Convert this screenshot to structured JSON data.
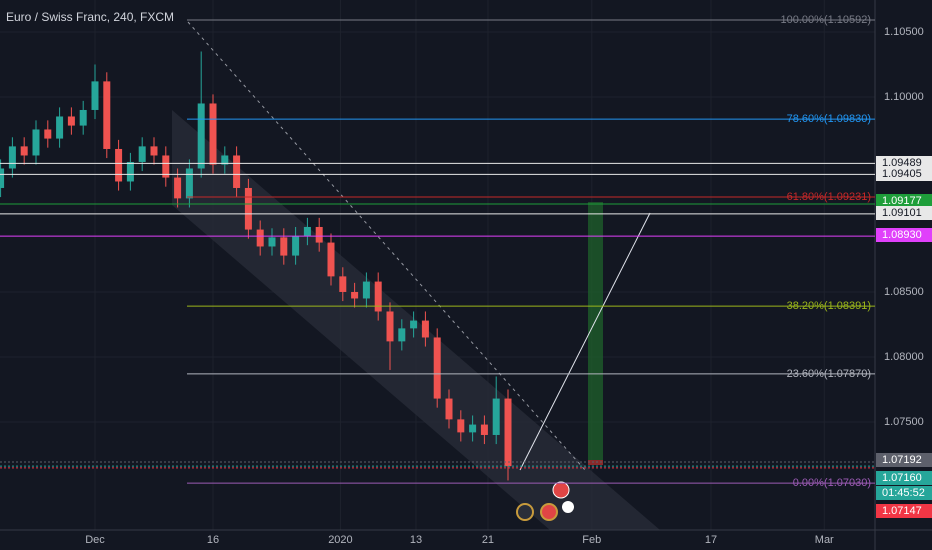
{
  "chart_data": {
    "type": "candlestick",
    "title": "Euro / Swiss Franc, 240, FXCM",
    "xlim": [
      -8.05,
      66.1
    ],
    "ylim": [
      1.06669,
      1.10746
    ],
    "xticks": [
      {
        "value": 0,
        "label": "Dec"
      },
      {
        "value": 10,
        "label": "16"
      },
      {
        "value": 20.8,
        "label": "2020"
      },
      {
        "value": 27.2,
        "label": "13"
      },
      {
        "value": 33.3,
        "label": "21"
      },
      {
        "value": 42.1,
        "label": "Feb"
      },
      {
        "value": 52.2,
        "label": "17"
      },
      {
        "value": 61.8,
        "label": "Mar"
      }
    ],
    "yticks": [
      {
        "value": 1.105,
        "label": "1.10500"
      },
      {
        "value": 1.1,
        "label": "1.10000"
      },
      {
        "value": 1.085,
        "label": "1.08500"
      },
      {
        "value": 1.08,
        "label": "1.08000"
      },
      {
        "value": 1.075,
        "label": "1.07500"
      }
    ],
    "grid": true,
    "candles": {
      "up_color": "#26a69a",
      "down_color": "#ef5350",
      "x": [
        -8,
        -7,
        -6,
        -5,
        -4,
        -3,
        -2,
        -1,
        0,
        1,
        2,
        3,
        4,
        5,
        6,
        7,
        8,
        9,
        10,
        11,
        12,
        13,
        14,
        15,
        16,
        17,
        18,
        19,
        20,
        21,
        22,
        23,
        24,
        25,
        26,
        27,
        28,
        29,
        30,
        31,
        32,
        33,
        34,
        35
      ],
      "open": [
        1.093,
        1.0945,
        1.0962,
        1.0955,
        1.0975,
        1.0968,
        1.0985,
        1.0978,
        1.099,
        1.1012,
        1.096,
        1.0935,
        1.095,
        1.0962,
        1.0955,
        1.0938,
        1.0922,
        1.0945,
        1.0995,
        1.0948,
        1.0955,
        1.093,
        1.0898,
        1.0885,
        1.0892,
        1.0878,
        1.0893,
        1.09,
        1.0888,
        1.0862,
        1.085,
        1.0845,
        1.0858,
        1.0835,
        1.0812,
        1.0822,
        1.0828,
        1.0815,
        1.0768,
        1.0752,
        1.0742,
        1.0748,
        1.074,
        1.0768
      ],
      "high": [
        1.0952,
        1.0969,
        1.0969,
        1.0982,
        1.0982,
        1.0992,
        1.0992,
        1.0997,
        1.1025,
        1.1019,
        1.0967,
        1.0957,
        1.0969,
        1.0969,
        1.0962,
        1.0945,
        1.0952,
        1.1035,
        1.1002,
        1.0962,
        1.0962,
        1.0937,
        1.0905,
        1.0899,
        1.0899,
        1.09,
        1.0907,
        1.0907,
        1.0895,
        1.0869,
        1.0857,
        1.0865,
        1.0865,
        1.0842,
        1.0829,
        1.0835,
        1.0835,
        1.0822,
        1.0775,
        1.0759,
        1.0755,
        1.0755,
        1.0785,
        1.0775
      ],
      "low": [
        1.0923,
        1.0938,
        1.0948,
        1.0948,
        1.0961,
        1.0961,
        1.0971,
        1.0971,
        1.0983,
        1.0953,
        1.0928,
        1.0928,
        1.0943,
        1.0948,
        1.0931,
        1.0915,
        1.0915,
        1.0938,
        1.0941,
        1.0941,
        1.0923,
        1.0891,
        1.0878,
        1.0878,
        1.0871,
        1.0871,
        1.0886,
        1.0881,
        1.0855,
        1.0843,
        1.0838,
        1.0838,
        1.0828,
        1.079,
        1.0805,
        1.0815,
        1.0808,
        1.0761,
        1.0745,
        1.0735,
        1.0735,
        1.0733,
        1.0733,
        1.0705
      ],
      "close": [
        1.0945,
        1.0962,
        1.0955,
        1.0975,
        1.0968,
        1.0985,
        1.0978,
        1.099,
        1.1012,
        1.096,
        1.0935,
        1.095,
        1.0962,
        1.0955,
        1.0938,
        1.0922,
        1.0945,
        1.0995,
        1.0948,
        1.0955,
        1.093,
        1.0898,
        1.0885,
        1.0892,
        1.0878,
        1.0893,
        1.09,
        1.0888,
        1.0862,
        1.085,
        1.0845,
        1.0858,
        1.0835,
        1.0812,
        1.0822,
        1.0828,
        1.0815,
        1.0768,
        1.0752,
        1.0742,
        1.0748,
        1.074,
        1.0768,
        1.0716
      ]
    },
    "fib_levels": [
      {
        "label": "100.00%(1.10592)",
        "value": 1.10592,
        "color": "#787b86"
      },
      {
        "label": "78.60%(1.09830)",
        "value": 1.0983,
        "color": "#2196f3"
      },
      {
        "label": "61.80%(1.09231)",
        "value": 1.09231,
        "color": "#c62828"
      },
      {
        "label": "38.20%(1.08391)",
        "value": 1.08391,
        "color": "#9bb61b"
      },
      {
        "label": "23.60%(1.07870)",
        "value": 1.0787,
        "color": "#b2b5be"
      },
      {
        "label": "0.00%(1.07030)",
        "value": 1.0703,
        "color": "#9c5bb5"
      }
    ],
    "price_lines": [
      {
        "label": "1.09489",
        "value": 1.09489,
        "color": "#e8e8e8",
        "text_color": "#131722"
      },
      {
        "label": "1.09405",
        "value": 1.09405,
        "color": "#e8e8e8",
        "text_color": "#131722"
      },
      {
        "label": "1.09177",
        "value": 1.09177,
        "color": "#1e9e3a",
        "text_color": "#ffffff"
      },
      {
        "label": "1.09101",
        "value": 1.09101,
        "color": "#e8e8e8",
        "text_color": "#131722"
      },
      {
        "label": "1.08930",
        "value": 1.0893,
        "color": "#e040fb",
        "text_color": "#ffffff"
      },
      {
        "label": "1.07192",
        "value": 1.07192,
        "color": "#5d606b",
        "text_color": "#ffffff"
      },
      {
        "label": "1.07160",
        "value": 1.0716,
        "color": "#26a69a",
        "text_color": "#ffffff"
      },
      {
        "label": "1.07147",
        "value": 1.07147,
        "color": "#f23645",
        "text_color": "#ffffff"
      }
    ],
    "countdown": "01:45:52"
  }
}
